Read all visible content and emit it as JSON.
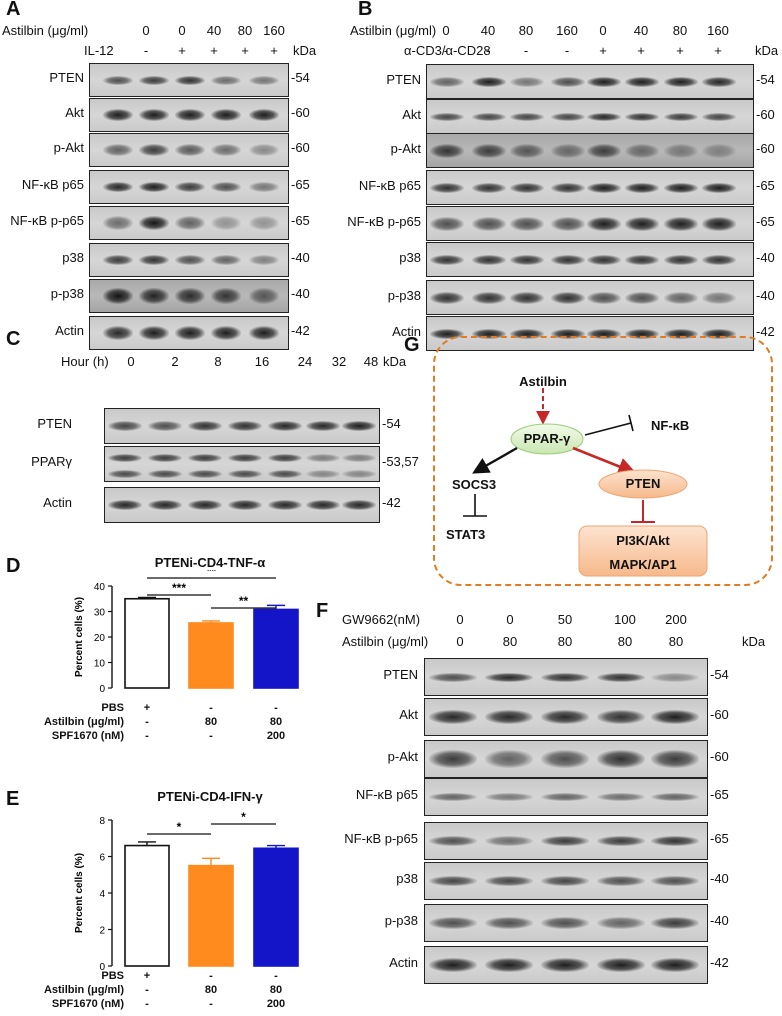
{
  "panels": {
    "A": {
      "letter": "A",
      "treatment_rows": [
        {
          "label": "Astilbin (μg/ml)",
          "values": [
            "0",
            "0",
            "40",
            "80",
            "160"
          ]
        },
        {
          "label": "IL-12",
          "values": [
            "-",
            "+",
            "+",
            "+",
            "+"
          ]
        }
      ],
      "kda_header": "kDa",
      "blots": [
        {
          "name": "PTEN",
          "mw": "-54"
        },
        {
          "name": "Akt",
          "mw": "-60"
        },
        {
          "name": "p-Akt",
          "mw": "-60"
        },
        {
          "name": "NF-κB  p65",
          "mw": "-65"
        },
        {
          "name": "NF-κB  p-p65",
          "mw": "-65"
        },
        {
          "name": "p38",
          "mw": "-40"
        },
        {
          "name": "p-p38",
          "mw": "-40"
        },
        {
          "name": "Actin",
          "mw": "-42"
        }
      ]
    },
    "B": {
      "letter": "B",
      "treatment_rows": [
        {
          "label": "Astilbin (μg/ml)",
          "values": [
            "0",
            "40",
            "80",
            "160",
            "0",
            "40",
            "80",
            "160"
          ]
        },
        {
          "label": "α-CD3/α-CD28",
          "values": [
            "-",
            "-",
            "-",
            "-",
            "+",
            "+",
            "+",
            "+"
          ]
        }
      ],
      "kda_header": "kDa",
      "blots": [
        {
          "name": "PTEN",
          "mw": "-54"
        },
        {
          "name": "Akt",
          "mw": "-60"
        },
        {
          "name": "p-Akt",
          "mw": "-60"
        },
        {
          "name": "NF-κB  p65",
          "mw": "-65"
        },
        {
          "name": "NF-κB  p-p65",
          "mw": "-65"
        },
        {
          "name": "p38",
          "mw": "-40"
        },
        {
          "name": "p-p38",
          "mw": "-40"
        },
        {
          "name": "Actin",
          "mw": "-42"
        }
      ]
    },
    "C": {
      "letter": "C",
      "header_label": "Hour (h)",
      "hours": [
        "0",
        "2",
        "8",
        "16",
        "24",
        "32",
        "48"
      ],
      "kda_header": "kDa",
      "blots": [
        {
          "name": "PTEN",
          "mw": "-54"
        },
        {
          "name": "PPARγ",
          "mw": "-53,57"
        },
        {
          "name": "Actin",
          "mw": "-42"
        }
      ]
    },
    "D": {
      "letter": "D",
      "title": "PTENi-CD4-TNF-α",
      "ylabel": "Percent cells (%)",
      "yticks": [
        "0",
        "10",
        "20",
        "30",
        "40"
      ],
      "sig": [
        "***",
        "**",
        "**"
      ],
      "conditions": [
        {
          "label": "PBS",
          "values": [
            "+",
            "-",
            "-"
          ]
        },
        {
          "label": "Astilbin (μg/ml)",
          "values": [
            "-",
            "80",
            "80"
          ]
        },
        {
          "label": "SPF1670 (nM)",
          "values": [
            "-",
            "-",
            "200"
          ]
        }
      ]
    },
    "E": {
      "letter": "E",
      "title": "PTENi-CD4-IFN-γ",
      "ylabel": "Percent cells (%)",
      "yticks": [
        "0",
        "2",
        "4",
        "6",
        "8"
      ],
      "sig": [
        "*",
        "*"
      ],
      "conditions": [
        {
          "label": "PBS",
          "values": [
            "+",
            "-",
            "-"
          ]
        },
        {
          "label": "Astilbin (μg/ml)",
          "values": [
            "-",
            "80",
            "80"
          ]
        },
        {
          "label": "SPF1670 (nM)",
          "values": [
            "-",
            "-",
            "200"
          ]
        }
      ]
    },
    "F": {
      "letter": "F",
      "treatment_rows": [
        {
          "label": "GW9662(nM)",
          "values": [
            "0",
            "0",
            "50",
            "100",
            "200"
          ]
        },
        {
          "label": "Astilbin (μg/ml)",
          "values": [
            "0",
            "80",
            "80",
            "80",
            "80"
          ]
        }
      ],
      "kda_header": "kDa",
      "blots": [
        {
          "name": "PTEN",
          "mw": "-54"
        },
        {
          "name": "Akt",
          "mw": "-60"
        },
        {
          "name": "p-Akt",
          "mw": "-60"
        },
        {
          "name": "NF-κB  p65",
          "mw": "-65"
        },
        {
          "name": "NF-κB  p-p65",
          "mw": "-65"
        },
        {
          "name": "p38",
          "mw": "-40"
        },
        {
          "name": "p-p38",
          "mw": "-40"
        },
        {
          "name": "Actin",
          "mw": "-42"
        }
      ]
    },
    "G": {
      "letter": "G",
      "nodes": {
        "astilbin": "Astilbin",
        "ppar": "PPAR-γ",
        "nfkb": "NF-κB",
        "socs3": "SOCS3",
        "pten": "PTEN",
        "stat3": "STAT3",
        "pi3k": "PI3K/Akt",
        "mapk": "MAPK/AP1"
      }
    }
  },
  "chart_data": [
    {
      "type": "bar",
      "title": "PTENi-CD4-TNF-α",
      "ylabel": "Percent cells (%)",
      "ylim": [
        0,
        40
      ],
      "categories": [
        "PBS",
        "Astilbin 80",
        "Astilbin 80 + SPF1670 200"
      ],
      "values": [
        35,
        25.5,
        30.8
      ],
      "errors": [
        0.5,
        0.8,
        1.6
      ],
      "colors": [
        "#ffffff",
        "#ff8a1e",
        "#1414c8"
      ]
    },
    {
      "type": "bar",
      "title": "PTENi-CD4-IFN-γ",
      "ylabel": "Percent cells (%)",
      "ylim": [
        0,
        8
      ],
      "categories": [
        "PBS",
        "Astilbin 80",
        "Astilbin 80 + SPF1670 200"
      ],
      "values": [
        6.6,
        5.5,
        6.45
      ],
      "errors": [
        0.2,
        0.4,
        0.15
      ],
      "colors": [
        "#ffffff",
        "#ff8a1e",
        "#1414c8"
      ]
    }
  ]
}
